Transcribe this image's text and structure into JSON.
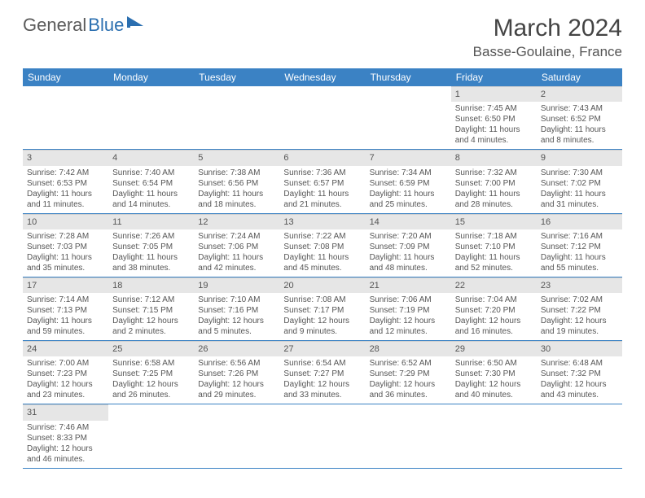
{
  "logo": {
    "text1": "General",
    "text2": "Blue"
  },
  "title": "March 2024",
  "location": "Basse-Goulaine, France",
  "colors": {
    "header_bg": "#3b82c4",
    "header_text": "#ffffff",
    "daynum_bg": "#e6e6e6",
    "row_border": "#3b82c4",
    "body_text": "#555555",
    "logo_gray": "#5a5a5a",
    "logo_blue": "#2b6fb0"
  },
  "fonts": {
    "title_pt": 30,
    "location_pt": 17,
    "th_pt": 12,
    "daynum_pt": 11,
    "cell_pt": 10
  },
  "weekdays": [
    "Sunday",
    "Monday",
    "Tuesday",
    "Wednesday",
    "Thursday",
    "Friday",
    "Saturday"
  ],
  "weeks": [
    [
      null,
      null,
      null,
      null,
      null,
      {
        "n": "1",
        "sr": "Sunrise: 7:45 AM",
        "ss": "Sunset: 6:50 PM",
        "d1": "Daylight: 11 hours",
        "d2": "and 4 minutes."
      },
      {
        "n": "2",
        "sr": "Sunrise: 7:43 AM",
        "ss": "Sunset: 6:52 PM",
        "d1": "Daylight: 11 hours",
        "d2": "and 8 minutes."
      }
    ],
    [
      {
        "n": "3",
        "sr": "Sunrise: 7:42 AM",
        "ss": "Sunset: 6:53 PM",
        "d1": "Daylight: 11 hours",
        "d2": "and 11 minutes."
      },
      {
        "n": "4",
        "sr": "Sunrise: 7:40 AM",
        "ss": "Sunset: 6:54 PM",
        "d1": "Daylight: 11 hours",
        "d2": "and 14 minutes."
      },
      {
        "n": "5",
        "sr": "Sunrise: 7:38 AM",
        "ss": "Sunset: 6:56 PM",
        "d1": "Daylight: 11 hours",
        "d2": "and 18 minutes."
      },
      {
        "n": "6",
        "sr": "Sunrise: 7:36 AM",
        "ss": "Sunset: 6:57 PM",
        "d1": "Daylight: 11 hours",
        "d2": "and 21 minutes."
      },
      {
        "n": "7",
        "sr": "Sunrise: 7:34 AM",
        "ss": "Sunset: 6:59 PM",
        "d1": "Daylight: 11 hours",
        "d2": "and 25 minutes."
      },
      {
        "n": "8",
        "sr": "Sunrise: 7:32 AM",
        "ss": "Sunset: 7:00 PM",
        "d1": "Daylight: 11 hours",
        "d2": "and 28 minutes."
      },
      {
        "n": "9",
        "sr": "Sunrise: 7:30 AM",
        "ss": "Sunset: 7:02 PM",
        "d1": "Daylight: 11 hours",
        "d2": "and 31 minutes."
      }
    ],
    [
      {
        "n": "10",
        "sr": "Sunrise: 7:28 AM",
        "ss": "Sunset: 7:03 PM",
        "d1": "Daylight: 11 hours",
        "d2": "and 35 minutes."
      },
      {
        "n": "11",
        "sr": "Sunrise: 7:26 AM",
        "ss": "Sunset: 7:05 PM",
        "d1": "Daylight: 11 hours",
        "d2": "and 38 minutes."
      },
      {
        "n": "12",
        "sr": "Sunrise: 7:24 AM",
        "ss": "Sunset: 7:06 PM",
        "d1": "Daylight: 11 hours",
        "d2": "and 42 minutes."
      },
      {
        "n": "13",
        "sr": "Sunrise: 7:22 AM",
        "ss": "Sunset: 7:08 PM",
        "d1": "Daylight: 11 hours",
        "d2": "and 45 minutes."
      },
      {
        "n": "14",
        "sr": "Sunrise: 7:20 AM",
        "ss": "Sunset: 7:09 PM",
        "d1": "Daylight: 11 hours",
        "d2": "and 48 minutes."
      },
      {
        "n": "15",
        "sr": "Sunrise: 7:18 AM",
        "ss": "Sunset: 7:10 PM",
        "d1": "Daylight: 11 hours",
        "d2": "and 52 minutes."
      },
      {
        "n": "16",
        "sr": "Sunrise: 7:16 AM",
        "ss": "Sunset: 7:12 PM",
        "d1": "Daylight: 11 hours",
        "d2": "and 55 minutes."
      }
    ],
    [
      {
        "n": "17",
        "sr": "Sunrise: 7:14 AM",
        "ss": "Sunset: 7:13 PM",
        "d1": "Daylight: 11 hours",
        "d2": "and 59 minutes."
      },
      {
        "n": "18",
        "sr": "Sunrise: 7:12 AM",
        "ss": "Sunset: 7:15 PM",
        "d1": "Daylight: 12 hours",
        "d2": "and 2 minutes."
      },
      {
        "n": "19",
        "sr": "Sunrise: 7:10 AM",
        "ss": "Sunset: 7:16 PM",
        "d1": "Daylight: 12 hours",
        "d2": "and 5 minutes."
      },
      {
        "n": "20",
        "sr": "Sunrise: 7:08 AM",
        "ss": "Sunset: 7:17 PM",
        "d1": "Daylight: 12 hours",
        "d2": "and 9 minutes."
      },
      {
        "n": "21",
        "sr": "Sunrise: 7:06 AM",
        "ss": "Sunset: 7:19 PM",
        "d1": "Daylight: 12 hours",
        "d2": "and 12 minutes."
      },
      {
        "n": "22",
        "sr": "Sunrise: 7:04 AM",
        "ss": "Sunset: 7:20 PM",
        "d1": "Daylight: 12 hours",
        "d2": "and 16 minutes."
      },
      {
        "n": "23",
        "sr": "Sunrise: 7:02 AM",
        "ss": "Sunset: 7:22 PM",
        "d1": "Daylight: 12 hours",
        "d2": "and 19 minutes."
      }
    ],
    [
      {
        "n": "24",
        "sr": "Sunrise: 7:00 AM",
        "ss": "Sunset: 7:23 PM",
        "d1": "Daylight: 12 hours",
        "d2": "and 23 minutes."
      },
      {
        "n": "25",
        "sr": "Sunrise: 6:58 AM",
        "ss": "Sunset: 7:25 PM",
        "d1": "Daylight: 12 hours",
        "d2": "and 26 minutes."
      },
      {
        "n": "26",
        "sr": "Sunrise: 6:56 AM",
        "ss": "Sunset: 7:26 PM",
        "d1": "Daylight: 12 hours",
        "d2": "and 29 minutes."
      },
      {
        "n": "27",
        "sr": "Sunrise: 6:54 AM",
        "ss": "Sunset: 7:27 PM",
        "d1": "Daylight: 12 hours",
        "d2": "and 33 minutes."
      },
      {
        "n": "28",
        "sr": "Sunrise: 6:52 AM",
        "ss": "Sunset: 7:29 PM",
        "d1": "Daylight: 12 hours",
        "d2": "and 36 minutes."
      },
      {
        "n": "29",
        "sr": "Sunrise: 6:50 AM",
        "ss": "Sunset: 7:30 PM",
        "d1": "Daylight: 12 hours",
        "d2": "and 40 minutes."
      },
      {
        "n": "30",
        "sr": "Sunrise: 6:48 AM",
        "ss": "Sunset: 7:32 PM",
        "d1": "Daylight: 12 hours",
        "d2": "and 43 minutes."
      }
    ],
    [
      {
        "n": "31",
        "sr": "Sunrise: 7:46 AM",
        "ss": "Sunset: 8:33 PM",
        "d1": "Daylight: 12 hours",
        "d2": "and 46 minutes."
      },
      null,
      null,
      null,
      null,
      null,
      null
    ]
  ]
}
